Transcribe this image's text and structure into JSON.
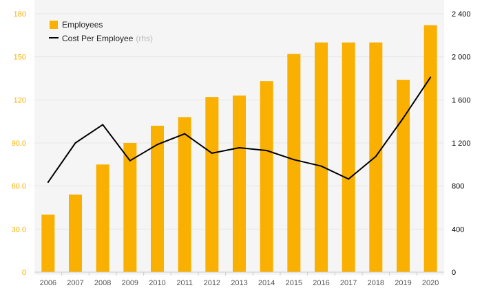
{
  "colors": {
    "bar": "#f9b000",
    "line": "#000000",
    "left_axis_text": "#f9b000",
    "right_axis_text": "#000000",
    "tick_text": "#555555",
    "grid": "#e6e6e6",
    "plot_bg": "#f5f5f5",
    "rhs_note": "#bbbbbb"
  },
  "chart_data": {
    "type": "bar",
    "categories": [
      "2006",
      "2007",
      "2008",
      "2009",
      "2010",
      "2011",
      "2012",
      "2013",
      "2014",
      "2015",
      "2016",
      "2017",
      "2018",
      "2019",
      "2020"
    ],
    "series": [
      {
        "name": "Employees",
        "type": "bar",
        "axis": "left",
        "values": [
          40,
          54,
          75,
          90,
          102,
          108,
          122,
          123,
          133,
          152,
          160,
          160,
          160,
          134,
          172
        ]
      },
      {
        "name": "Cost Per Employee",
        "type": "line",
        "axis": "right",
        "values": [
          835,
          1200,
          1370,
          1035,
          1185,
          1285,
          1105,
          1155,
          1130,
          1045,
          985,
          865,
          1075,
          1430,
          1810
        ]
      }
    ],
    "left_axis": {
      "ylim": [
        0,
        180
      ],
      "tick_labels": [
        "0",
        "30.0",
        "60.0",
        "90.0",
        "120",
        "150",
        "180"
      ]
    },
    "right_axis": {
      "ylim": [
        0,
        2400
      ],
      "tick_labels": [
        "0",
        "400",
        "800",
        "1 200",
        "1 600",
        "2 000",
        "2 400"
      ]
    },
    "legend": {
      "position": "top-left",
      "items": [
        {
          "label": "Employees",
          "marker": "square"
        },
        {
          "label": "Cost Per Employee",
          "note": "(rhs)",
          "marker": "line"
        }
      ]
    },
    "grid": true
  }
}
